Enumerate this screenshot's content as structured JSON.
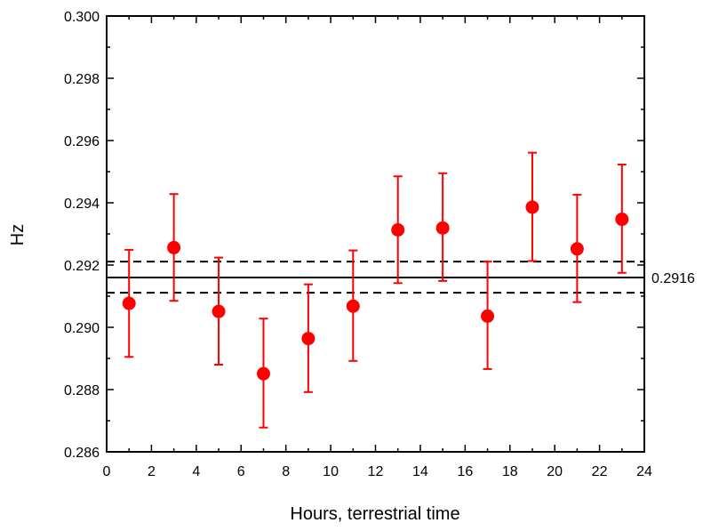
{
  "chart_data": {
    "type": "scatter",
    "title": "",
    "xlabel": "Hours, terrestrial time",
    "ylabel": "Hz",
    "xlim": [
      0,
      24
    ],
    "ylim": [
      0.286,
      0.3
    ],
    "x_ticks": [
      0,
      2,
      4,
      6,
      8,
      10,
      12,
      14,
      16,
      18,
      20,
      22,
      24
    ],
    "y_ticks": [
      0.286,
      0.288,
      0.29,
      0.292,
      0.294,
      0.296,
      0.298,
      0.3
    ],
    "x_tick_labels": [
      "0",
      "2",
      "4",
      "6",
      "8",
      "10",
      "12",
      "14",
      "16",
      "18",
      "20",
      "22",
      "24"
    ],
    "y_tick_labels": [
      "0.286",
      "0.288",
      "0.290",
      "0.292",
      "0.294",
      "0.296",
      "0.298",
      "0.300"
    ],
    "grid": false,
    "series": [
      {
        "color": "#ff0000",
        "marker": "circle",
        "x": [
          1,
          3,
          5,
          7,
          9,
          11,
          13,
          15,
          17,
          19,
          21,
          23
        ],
        "y": [
          0.29077,
          0.29256,
          0.29051,
          0.28851,
          0.28964,
          0.29068,
          0.29313,
          0.29319,
          0.29036,
          0.29386,
          0.29252,
          0.29347
        ],
        "err_low": [
          0.28905,
          0.29085,
          0.2888,
          0.28678,
          0.28792,
          0.28892,
          0.29142,
          0.29149,
          0.28866,
          0.29213,
          0.29081,
          0.29175
        ],
        "err_high": [
          0.29249,
          0.29428,
          0.29224,
          0.29028,
          0.29138,
          0.29247,
          0.29485,
          0.29495,
          0.29211,
          0.29561,
          0.29426,
          0.29523
        ]
      }
    ],
    "reference_lines": [
      {
        "y": 0.2916,
        "style": "solid",
        "color": "#000000",
        "label": "0.2916"
      },
      {
        "y": 0.29211,
        "style": "dashed",
        "color": "#000000"
      },
      {
        "y": 0.29111,
        "style": "dashed",
        "color": "#000000"
      }
    ]
  }
}
